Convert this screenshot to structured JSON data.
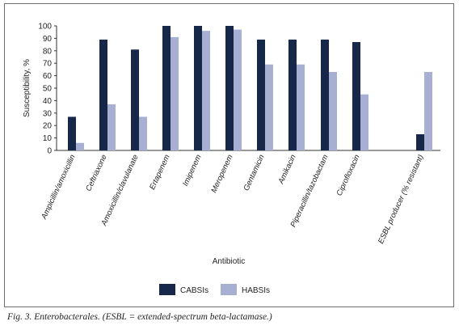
{
  "chart_data": {
    "type": "bar",
    "categories": [
      "Ampicillin/amoxicillin",
      "Ceftriaxone",
      "Amoxicillin/clavulanate",
      "Ertapenem",
      "Imipenem",
      "Meropenem",
      "Gentamicin",
      "Amikacin",
      "Piperacillin/tazobactam",
      "Ciprofloxacin",
      "ESBL producer (% resistant)"
    ],
    "series": [
      {
        "name": "CABSIs",
        "color": "#17274a",
        "values": [
          27,
          89,
          81,
          100,
          100,
          100,
          89,
          89,
          89,
          87,
          13
        ]
      },
      {
        "name": "HABSIs",
        "color": "#a7afd2",
        "values": [
          6,
          37,
          27,
          91,
          96,
          97,
          69,
          69,
          63,
          45,
          63
        ]
      }
    ],
    "xlabel": "Antibiotic",
    "ylabel": "Susceptibility, %",
    "ylim": [
      0,
      100
    ],
    "yticks": [
      0,
      10,
      20,
      30,
      40,
      50,
      60,
      70,
      80,
      90,
      100
    ],
    "grid": false,
    "legend": "bottom-center"
  },
  "caption": "Fig. 3. Enterobacterales. (ESBL = extended-spectrum beta-lactamase.)"
}
